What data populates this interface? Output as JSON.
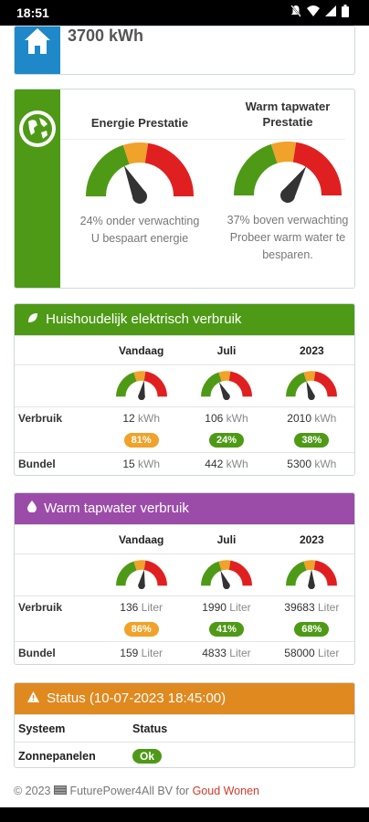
{
  "status_bar": {
    "time": "18:51",
    "icons": [
      "mute-icon",
      "wifi-icon",
      "signal-icon",
      "battery-icon"
    ]
  },
  "home": {
    "value": "3700 kWh",
    "icon": "home-icon"
  },
  "performance": {
    "icon": "globe-icon",
    "energy": {
      "title": "Energie Prestatie",
      "line1": "24% onder verwachting",
      "line2": "U bespaart energie",
      "gauge_level": 0.35
    },
    "water": {
      "title_line1": "Warm tapwater",
      "title_line2": "Prestatie",
      "line1": "37% boven verwachting",
      "line2": "Probeer warm water te",
      "line3": "besparen.",
      "gauge_level": 0.68
    }
  },
  "electricity": {
    "title": "Huishoudelijk elektrisch verbruik",
    "icon": "leaf-icon",
    "columns": [
      "Vandaag",
      "Juli",
      "2023"
    ],
    "gauges": [
      0.55,
      0.35,
      0.4
    ],
    "usage_label": "Verbruik",
    "usage": [
      {
        "num": "12",
        "unit": "kWh"
      },
      {
        "num": "106",
        "unit": "kWh"
      },
      {
        "num": "2010",
        "unit": "kWh"
      }
    ],
    "badges": [
      {
        "text": "81%",
        "color": "orange"
      },
      {
        "text": "24%",
        "color": "green"
      },
      {
        "text": "38%",
        "color": "green"
      }
    ],
    "bundle_label": "Bundel",
    "bundle": [
      {
        "num": "15",
        "unit": "kWh"
      },
      {
        "num": "442",
        "unit": "kWh"
      },
      {
        "num": "5300",
        "unit": "kWh"
      }
    ]
  },
  "water": {
    "title": "Warm tapwater verbruik",
    "icon": "droplet-icon",
    "columns": [
      "Vandaag",
      "Juli",
      "2023"
    ],
    "gauges": [
      0.55,
      0.38,
      0.5
    ],
    "usage_label": "Verbruik",
    "usage": [
      {
        "num": "136",
        "unit": "Liter"
      },
      {
        "num": "1990",
        "unit": "Liter"
      },
      {
        "num": "39683",
        "unit": "Liter"
      }
    ],
    "badges": [
      {
        "text": "86%",
        "color": "orange"
      },
      {
        "text": "41%",
        "color": "green"
      },
      {
        "text": "68%",
        "color": "green"
      }
    ],
    "bundle_label": "Bundel",
    "bundle": [
      {
        "num": "159",
        "unit": "Liter"
      },
      {
        "num": "4833",
        "unit": "Liter"
      },
      {
        "num": "58000",
        "unit": "Liter"
      }
    ]
  },
  "status": {
    "title": "Status (10-07-2023 18:45:00)",
    "icon": "warning-icon",
    "col1": "Systeem",
    "col2": "Status",
    "row_label": "Zonnepanelen",
    "row_status": "Ok"
  },
  "footer": {
    "prefix": "© 2023",
    "icon": "flag-icon",
    "company": "FuturePower4All BV for",
    "brand": "Goud Wonen"
  },
  "colors": {
    "green": "#4e9a16",
    "orange": "#f0a22a",
    "red": "#e02020",
    "purple": "#9b4ca8",
    "status_orange": "#e0891f",
    "blue": "#1e88c9"
  }
}
